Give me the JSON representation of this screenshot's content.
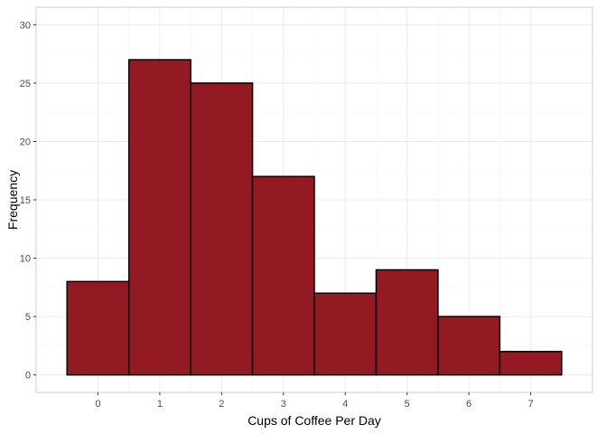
{
  "chart_data": {
    "type": "bar",
    "title": "",
    "xlabel": "Cups of Coffee Per Day",
    "ylabel": "Frequency",
    "categories": [
      "0",
      "1",
      "2",
      "3",
      "4",
      "5",
      "6",
      "7"
    ],
    "x": [
      0,
      1,
      2,
      3,
      4,
      5,
      6,
      7
    ],
    "values": [
      8,
      27,
      25,
      17,
      7,
      9,
      5,
      2
    ],
    "xlim": [
      -0.5,
      7.5
    ],
    "ylim": [
      0,
      30
    ],
    "yticks": [
      0,
      5,
      10,
      15,
      20,
      25,
      30
    ],
    "grid": true,
    "legend": "none",
    "colors": {
      "bar_fill": "#931a22",
      "bar_stroke": "#000000",
      "grid_major": "#ebebeb",
      "grid_minor": "#f5f5f5",
      "panel_border": "#cccccc"
    }
  }
}
